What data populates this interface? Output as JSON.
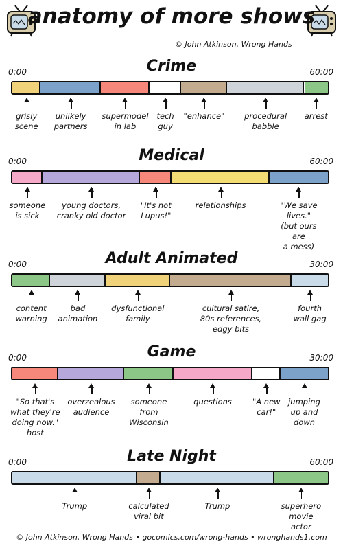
{
  "title": "anatomy of more shows",
  "credit": "© John Atkinson, Wrong Hands",
  "footer": "© John Atkinson, Wrong Hands • gocomics.com/wrong-hands • wronghands1.com",
  "sections": [
    {
      "name": "Crime",
      "start": "0:00",
      "end": "60:00",
      "segments": [
        {
          "label": "grisly\nscene",
          "share": 0.09,
          "color": "#f0d27a"
        },
        {
          "label": "unlikely\npartners",
          "share": 0.19,
          "color": "#7da2c9"
        },
        {
          "label": "supermodel\nin lab",
          "share": 0.155,
          "color": "#f6877b"
        },
        {
          "label": "tech\nguy",
          "share": 0.1,
          "color": "#ffffff"
        },
        {
          "label": "\"enhance\"",
          "share": 0.145,
          "color": "#c3ab8f"
        },
        {
          "label": "procedural\nbabble",
          "share": 0.245,
          "color": "#cfd4da"
        },
        {
          "label": "arrest",
          "share": 0.075,
          "color": "#8dc787"
        }
      ]
    },
    {
      "name": "Medical",
      "start": "0:00",
      "end": "60:00",
      "segments": [
        {
          "label": "someone\nis sick",
          "share": 0.095,
          "color": "#f5a8c8"
        },
        {
          "label": "young doctors,\ncranky old doctor",
          "share": 0.31,
          "color": "#b7a8dc"
        },
        {
          "label": "\"It's not\nLupus!\"",
          "share": 0.1,
          "color": "#f6877b"
        },
        {
          "label": "relationships",
          "share": 0.31,
          "color": "#f3dc74"
        },
        {
          "label": "\"We save lives.\"\n(but ours are\na mess)",
          "share": 0.185,
          "color": "#7da2c9"
        }
      ]
    },
    {
      "name": "Adult Animated",
      "start": "0:00",
      "end": "30:00",
      "segments": [
        {
          "label": "content\nwarning",
          "share": 0.12,
          "color": "#8dc787"
        },
        {
          "label": "bad\nanimation",
          "share": 0.175,
          "color": "#cfd4da"
        },
        {
          "label": "dysfunctional\nfamily",
          "share": 0.205,
          "color": "#f0d27a"
        },
        {
          "label": "cultural satire,\n80s references,\nedgy bits",
          "share": 0.385,
          "color": "#c3ab8f"
        },
        {
          "label": "fourth\nwall gag",
          "share": 0.115,
          "color": "#c9dbe8"
        }
      ]
    },
    {
      "name": "Game",
      "start": "0:00",
      "end": "30:00",
      "segments": [
        {
          "label": "\"So that's\nwhat they're\ndoing now.\"\nhost",
          "share": 0.145,
          "color": "#f6877b"
        },
        {
          "label": "overzealous\naudience",
          "share": 0.21,
          "color": "#b7a8dc"
        },
        {
          "label": "someone\nfrom\nWisconsin",
          "share": 0.155,
          "color": "#8dc787"
        },
        {
          "label": "questions",
          "share": 0.25,
          "color": "#f5a8c8"
        },
        {
          "label": "\"A new\ncar!\"",
          "share": 0.09,
          "color": "#ffffff"
        },
        {
          "label": "jumping\nup and\ndown",
          "share": 0.15,
          "color": "#7da2c9"
        }
      ]
    },
    {
      "name": "Late Night",
      "start": "0:00",
      "end": "60:00",
      "segments": [
        {
          "label": "Trump",
          "share": 0.395,
          "color": "#c9dbe8"
        },
        {
          "label": "calculated\nviral bit",
          "share": 0.075,
          "color": "#c3ab8f"
        },
        {
          "label": "Trump",
          "share": 0.36,
          "color": "#c9dbe8"
        },
        {
          "label": "superhero\nmovie actor",
          "share": 0.17,
          "color": "#8dc787"
        }
      ]
    }
  ]
}
